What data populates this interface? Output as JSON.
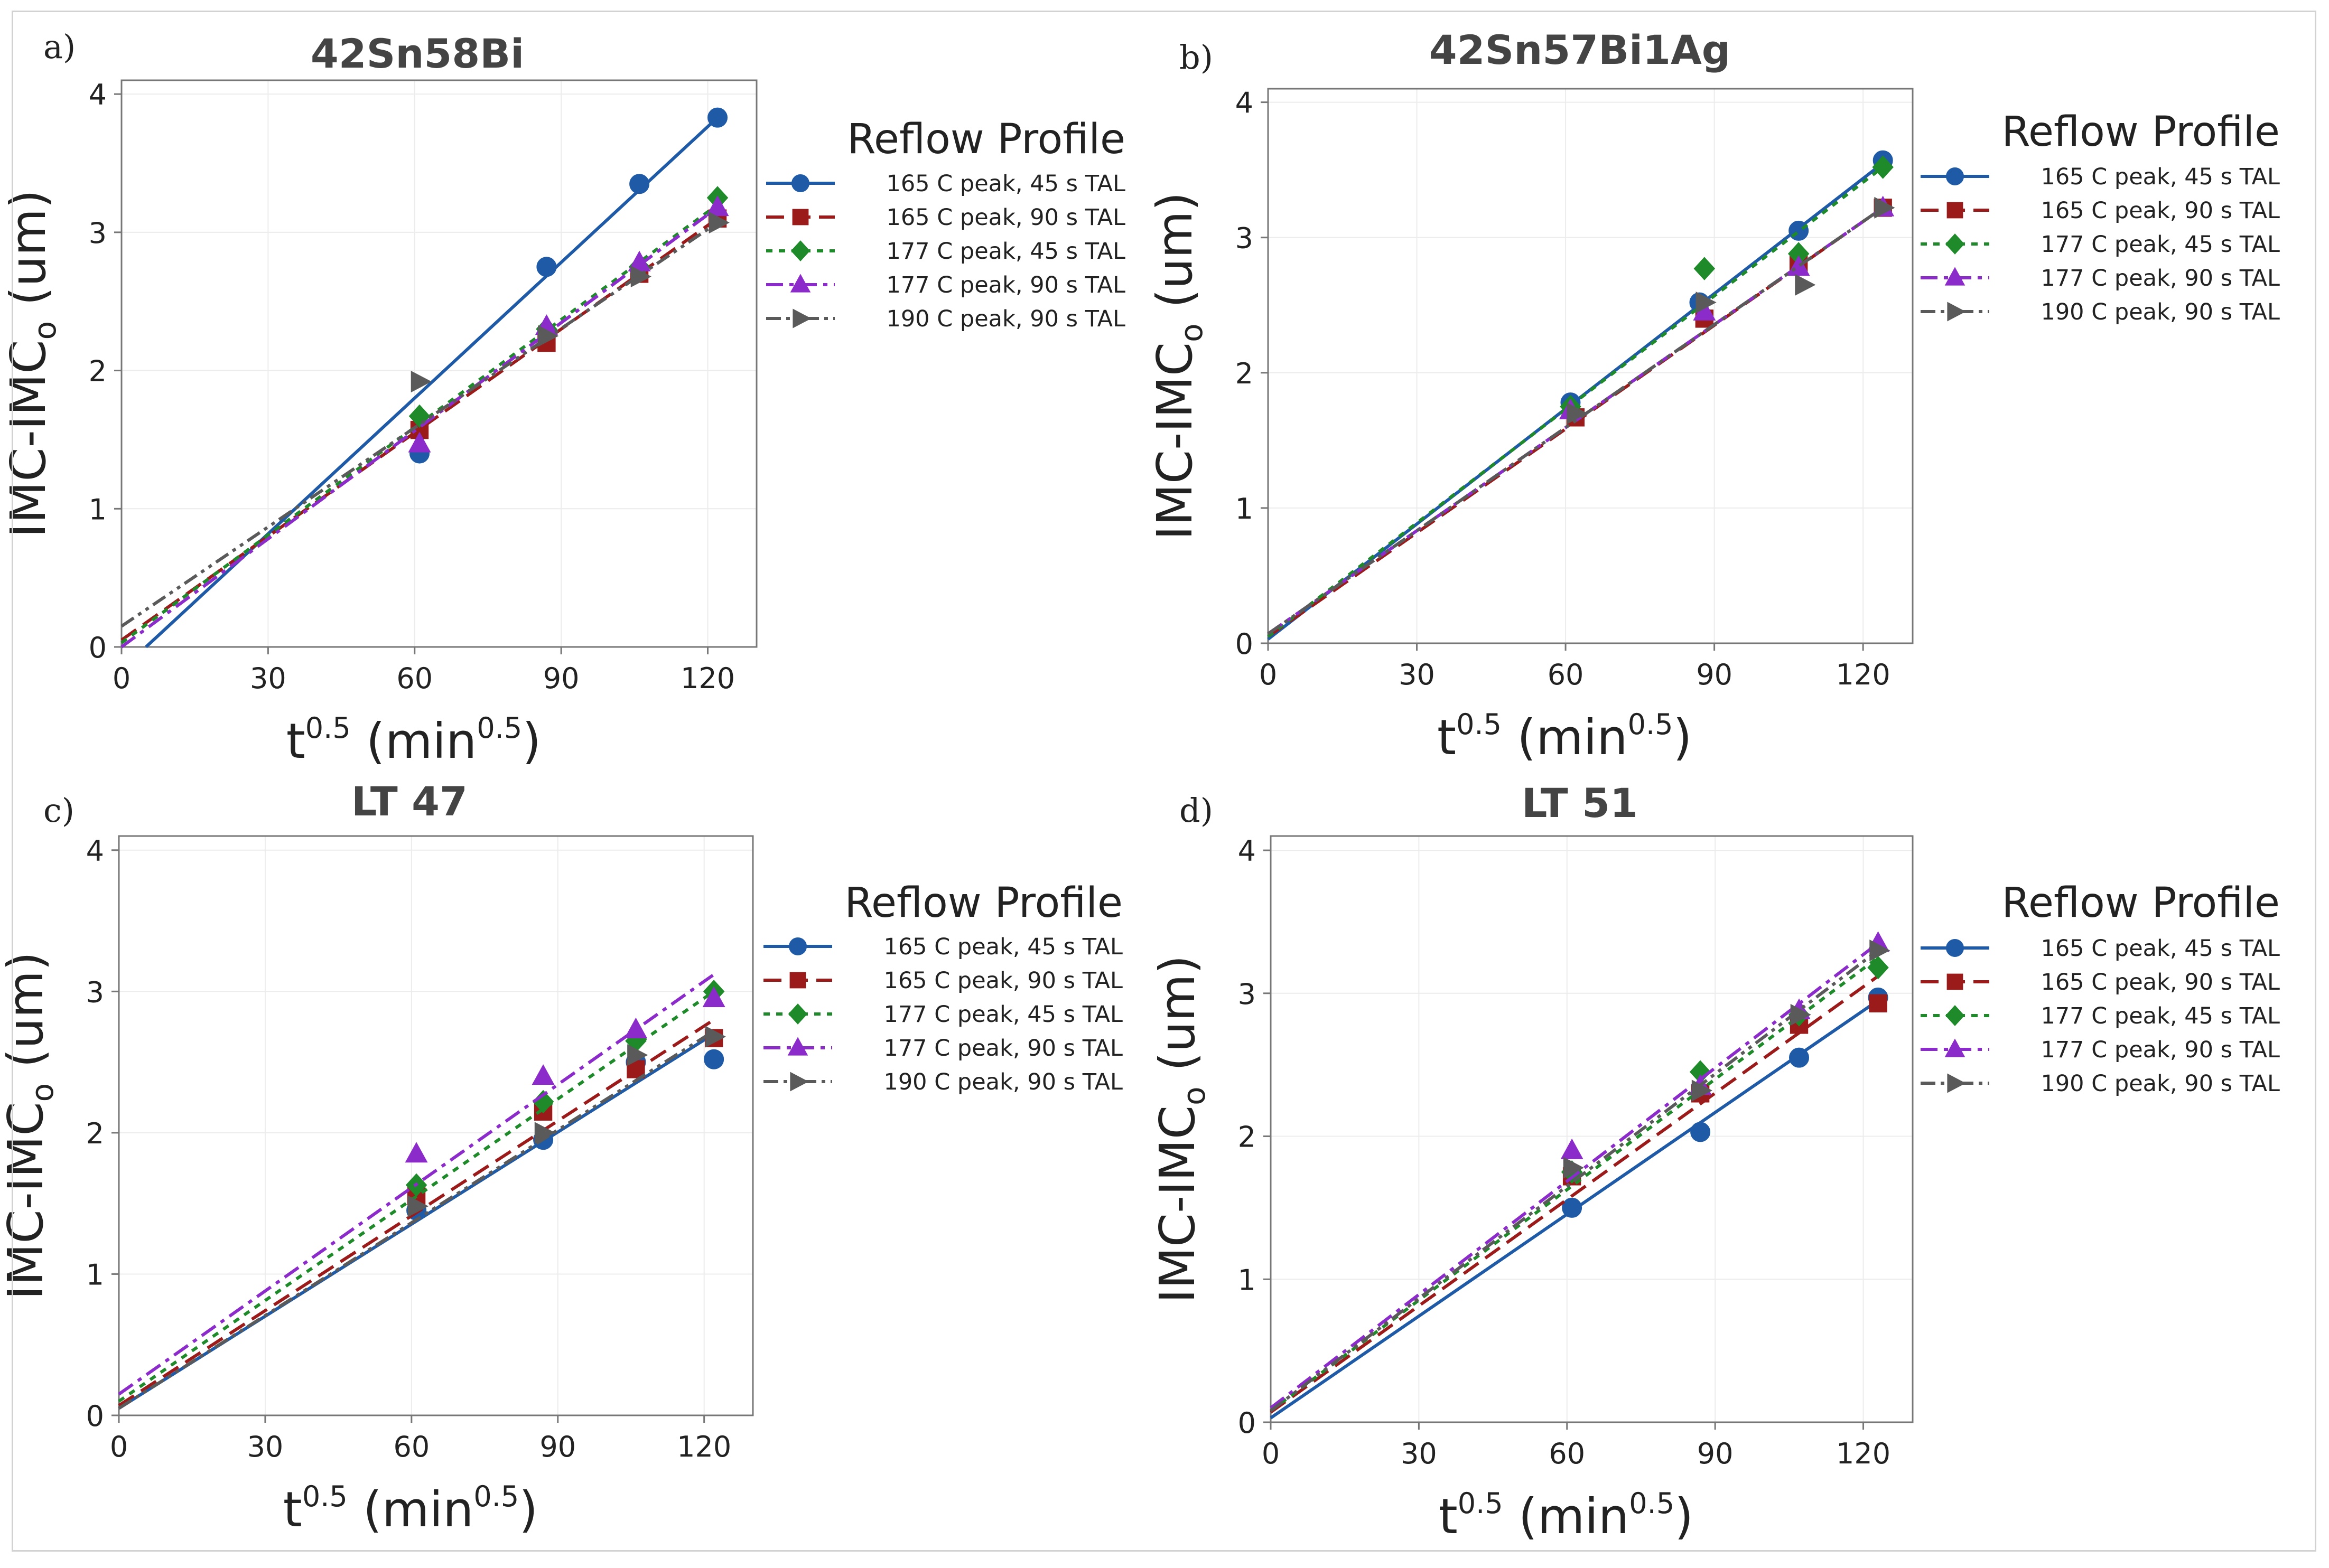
{
  "figure": {
    "legend_title": "Reflow Profile",
    "legend_entries": [
      "165 C peak, 45 s TAL",
      "165 C peak, 90 s TAL",
      "177 C peak, 45 s TAL",
      "177 C peak, 90 s TAL",
      "190 C peak, 90 s TAL"
    ],
    "series_style": [
      {
        "color": "#1F5AA6",
        "marker": "circle",
        "dash": "solid"
      },
      {
        "color": "#9B1B1B",
        "marker": "square",
        "dash": "dash"
      },
      {
        "color": "#1E8A2A",
        "marker": "diamond",
        "dash": "dot"
      },
      {
        "color": "#8B2BC9",
        "marker": "triangle",
        "dash": "dashdot"
      },
      {
        "color": "#5A5A5A",
        "marker": "arrow",
        "dash": "dashdotdot"
      }
    ]
  },
  "chart_data": [
    {
      "type": "scatter",
      "panel": "a)",
      "title": "42Sn58Bi",
      "xlabel": "t",
      "xlabel_sup": "0.5",
      "xlabel_paren": "(min",
      "ylabel": "IMC-IMC",
      "ylabel_sub": "o",
      "ylabel_unit": " (um)",
      "xlim": [
        0,
        130
      ],
      "ylim": [
        0,
        4.1
      ],
      "xticks": [
        "0",
        "30",
        "60",
        "90",
        "120"
      ],
      "yticks": [
        "0",
        "1",
        "2",
        "3",
        "4"
      ],
      "grid": true,
      "legend_position": "right",
      "series": [
        {
          "name": "165 C peak, 45 s TAL",
          "points": [
            [
              61,
              1.4
            ],
            [
              87,
              2.75
            ],
            [
              106,
              3.35
            ],
            [
              122,
              3.83
            ]
          ],
          "fit": [
            [
              5,
              0
            ],
            [
              122,
              3.83
            ]
          ]
        },
        {
          "name": "165 C peak, 90 s TAL",
          "points": [
            [
              61,
              1.57
            ],
            [
              87,
              2.2
            ],
            [
              106,
              2.7
            ],
            [
              122,
              3.1
            ]
          ],
          "fit": [
            [
              0,
              0.05
            ],
            [
              122,
              3.1
            ]
          ]
        },
        {
          "name": "177 C peak, 45 s TAL",
          "points": [
            [
              61,
              1.67
            ],
            [
              87,
              2.3
            ],
            [
              106,
              2.75
            ],
            [
              122,
              3.25
            ]
          ],
          "fit": [
            [
              0,
              0.03
            ],
            [
              122,
              3.2
            ]
          ]
        },
        {
          "name": "177 C peak, 90 s TAL",
          "points": [
            [
              61,
              1.47
            ],
            [
              87,
              2.32
            ],
            [
              106,
              2.78
            ],
            [
              122,
              3.18
            ]
          ],
          "fit": [
            [
              0,
              0.0
            ],
            [
              122,
              3.18
            ]
          ]
        },
        {
          "name": "190 C peak, 90 s TAL",
          "points": [
            [
              61,
              1.92
            ],
            [
              87,
              2.25
            ],
            [
              106,
              2.68
            ],
            [
              122,
              3.07
            ]
          ],
          "fit": [
            [
              0,
              0.15
            ],
            [
              122,
              3.07
            ]
          ]
        }
      ]
    },
    {
      "type": "scatter",
      "panel": "b)",
      "title": "42Sn57Bi1Ag",
      "xlabel": "t",
      "xlabel_sup": "0.5",
      "xlabel_paren": "(min",
      "ylabel": "IMC-IMC",
      "ylabel_sub": "o",
      "ylabel_unit": " (um)",
      "xlim": [
        0,
        130
      ],
      "ylim": [
        0,
        4.1
      ],
      "xticks": [
        "0",
        "30",
        "60",
        "90",
        "120"
      ],
      "yticks": [
        "0",
        "1",
        "2",
        "3",
        "4"
      ],
      "grid": true,
      "legend_position": "right",
      "series": [
        {
          "name": "165 C peak, 45 s TAL",
          "points": [
            [
              61,
              1.78
            ],
            [
              87,
              2.52
            ],
            [
              107,
              3.05
            ],
            [
              124,
              3.57
            ]
          ],
          "fit": [
            [
              0,
              0.03
            ],
            [
              124,
              3.55
            ]
          ]
        },
        {
          "name": "165 C peak, 90 s TAL",
          "points": [
            [
              62,
              1.67
            ],
            [
              88,
              2.4
            ],
            [
              107,
              2.8
            ],
            [
              124,
              3.22
            ]
          ],
          "fit": [
            [
              0,
              0.05
            ],
            [
              124,
              3.22
            ]
          ]
        },
        {
          "name": "177 C peak, 45 s TAL",
          "points": [
            [
              61,
              1.75
            ],
            [
              88,
              2.77
            ],
            [
              107,
              2.88
            ],
            [
              124,
              3.52
            ]
          ],
          "fit": [
            [
              0,
              0.05
            ],
            [
              124,
              3.52
            ]
          ]
        },
        {
          "name": "177 C peak, 90 s TAL",
          "points": [
            [
              61,
              1.72
            ],
            [
              88,
              2.45
            ],
            [
              107,
              2.78
            ],
            [
              124,
              3.22
            ]
          ],
          "fit": [
            [
              0,
              0.07
            ],
            [
              124,
              3.22
            ]
          ]
        },
        {
          "name": "190 C peak, 90 s TAL",
          "points": [
            [
              62,
              1.7
            ],
            [
              88,
              2.52
            ],
            [
              108,
              2.65
            ],
            [
              124,
              3.22
            ]
          ],
          "fit": [
            [
              0,
              0.07
            ],
            [
              124,
              3.22
            ]
          ]
        }
      ]
    },
    {
      "type": "scatter",
      "panel": "c)",
      "title": "LT 47",
      "xlabel": "t",
      "xlabel_sup": "0.5",
      "xlabel_paren": "(min",
      "ylabel": "IMC-IMC",
      "ylabel_sub": "o",
      "ylabel_unit": " (um)",
      "xlim": [
        0,
        130
      ],
      "ylim": [
        0,
        4.1
      ],
      "xticks": [
        "0",
        "30",
        "60",
        "90",
        "120"
      ],
      "yticks": [
        "0",
        "1",
        "2",
        "3",
        "4"
      ],
      "grid": true,
      "legend_position": "right",
      "series": [
        {
          "name": "165 C peak, 45 s TAL",
          "points": [
            [
              61,
              1.45
            ],
            [
              87,
              1.95
            ],
            [
              106,
              2.5
            ],
            [
              122,
              2.52
            ]
          ],
          "fit": [
            [
              0,
              0.05
            ],
            [
              122,
              2.7
            ]
          ]
        },
        {
          "name": "165 C peak, 90 s TAL",
          "points": [
            [
              61,
              1.55
            ],
            [
              87,
              2.15
            ],
            [
              106,
              2.45
            ],
            [
              122,
              2.67
            ]
          ],
          "fit": [
            [
              0,
              0.07
            ],
            [
              122,
              2.8
            ]
          ]
        },
        {
          "name": "177 C peak, 45 s TAL",
          "points": [
            [
              61,
              1.63
            ],
            [
              87,
              2.22
            ],
            [
              106,
              2.65
            ],
            [
              122,
              3.0
            ]
          ],
          "fit": [
            [
              0,
              0.1
            ],
            [
              122,
              3.0
            ]
          ]
        },
        {
          "name": "177 C peak, 90 s TAL",
          "points": [
            [
              61,
              1.85
            ],
            [
              87,
              2.4
            ],
            [
              106,
              2.73
            ],
            [
              122,
              2.95
            ]
          ],
          "fit": [
            [
              0,
              0.15
            ],
            [
              122,
              3.12
            ]
          ]
        },
        {
          "name": "190 C peak, 90 s TAL",
          "points": [
            [
              61,
              1.48
            ],
            [
              87,
              2.0
            ],
            [
              106,
              2.55
            ],
            [
              122,
              2.68
            ]
          ],
          "fit": [
            [
              0,
              0.05
            ],
            [
              122,
              2.72
            ]
          ]
        }
      ]
    },
    {
      "type": "scatter",
      "panel": "d)",
      "title": "LT 51",
      "xlabel": "t",
      "xlabel_sup": "0.5",
      "xlabel_paren": "(min",
      "ylabel": "IMC-IMC",
      "ylabel_sub": "o",
      "ylabel_unit": " (um)",
      "xlim": [
        0,
        130
      ],
      "ylim": [
        0,
        4.1
      ],
      "xticks": [
        "0",
        "30",
        "60",
        "90",
        "120"
      ],
      "yticks": [
        "0",
        "1",
        "2",
        "3",
        "4"
      ],
      "grid": true,
      "legend_position": "right",
      "series": [
        {
          "name": "165 C peak, 45 s TAL",
          "points": [
            [
              61,
              1.5
            ],
            [
              87,
              2.03
            ],
            [
              107,
              2.55
            ],
            [
              123,
              2.97
            ]
          ],
          "fit": [
            [
              0,
              0.03
            ],
            [
              123,
              2.95
            ]
          ]
        },
        {
          "name": "165 C peak, 90 s TAL",
          "points": [
            [
              61,
              1.72
            ],
            [
              87,
              2.3
            ],
            [
              107,
              2.78
            ],
            [
              123,
              2.93
            ]
          ],
          "fit": [
            [
              0,
              0.07
            ],
            [
              123,
              3.12
            ]
          ]
        },
        {
          "name": "177 C peak, 45 s TAL",
          "points": [
            [
              61,
              1.75
            ],
            [
              87,
              2.45
            ],
            [
              107,
              2.85
            ],
            [
              123,
              3.18
            ]
          ],
          "fit": [
            [
              0,
              0.08
            ],
            [
              123,
              3.25
            ]
          ]
        },
        {
          "name": "177 C peak, 90 s TAL",
          "points": [
            [
              61,
              1.9
            ],
            [
              87,
              2.35
            ],
            [
              107,
              2.88
            ],
            [
              123,
              3.35
            ]
          ],
          "fit": [
            [
              0,
              0.1
            ],
            [
              123,
              3.35
            ]
          ]
        },
        {
          "name": "190 C peak, 90 s TAL",
          "points": [
            [
              61,
              1.78
            ],
            [
              87,
              2.32
            ],
            [
              107,
              2.85
            ],
            [
              123,
              3.3
            ]
          ],
          "fit": [
            [
              0,
              0.08
            ],
            [
              123,
              3.3
            ]
          ]
        }
      ]
    }
  ]
}
